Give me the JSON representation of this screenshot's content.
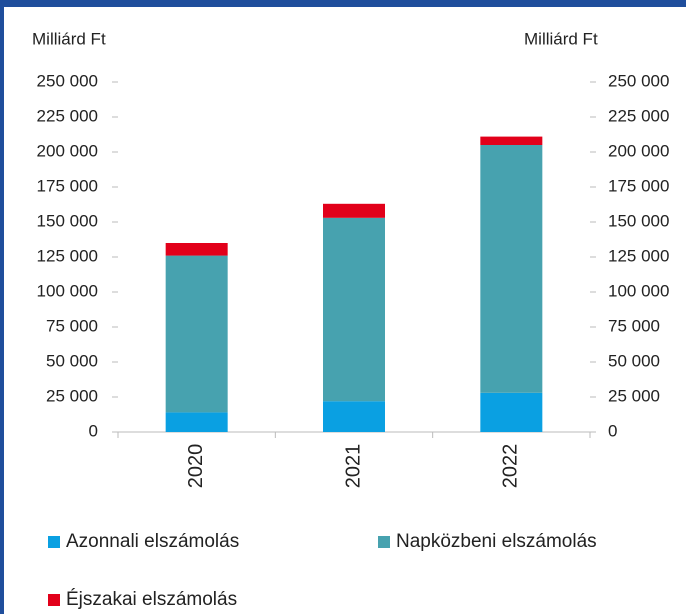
{
  "chart_data": {
    "type": "bar",
    "stacked": true,
    "y_label": "Milliárd Ft",
    "y2_label": "Milliárd Ft",
    "categories": [
      "2020",
      "2021",
      "2022"
    ],
    "series": [
      {
        "name": "Azonnali elszámolás",
        "color": "#0aa0e2",
        "values": [
          14000,
          22000,
          28000
        ]
      },
      {
        "name": "Napközbeni elszámolás",
        "color": "#47a2af",
        "values": [
          112000,
          131000,
          177000
        ]
      },
      {
        "name": "Éjszakai elszámolás",
        "color": "#e2001a",
        "values": [
          9000,
          10000,
          6000
        ]
      }
    ],
    "ylim": [
      0,
      250000
    ],
    "yticks": [
      0,
      {
        "value": 25000,
        "label": "25 000"
      },
      {
        "value": 50000,
        "label": "50 000"
      },
      {
        "value": 75000,
        "label": "75 000"
      },
      {
        "value": 100000,
        "label": "100 000"
      },
      {
        "value": 125000,
        "label": "125 000"
      },
      {
        "value": 150000,
        "label": "150 000"
      },
      {
        "value": 175000,
        "label": "175 000"
      },
      {
        "value": 200000,
        "label": "200 000"
      },
      {
        "value": 225000,
        "label": "225 000"
      },
      {
        "value": 250000,
        "label": "250 000"
      }
    ],
    "y2lim": [
      0,
      250000
    ],
    "y2ticks": [
      0,
      {
        "value": 25000,
        "label": "25 000"
      },
      {
        "value": 50000,
        "label": "50 000"
      },
      {
        "value": 75000,
        "label": "75 000"
      },
      {
        "value": 100000,
        "label": "100 000"
      },
      {
        "value": 125000,
        "label": "125 000"
      },
      {
        "value": 150000,
        "label": "150 000"
      },
      {
        "value": 175000,
        "label": "175 000"
      },
      {
        "value": 200000,
        "label": "200 000"
      },
      {
        "value": 225000,
        "label": "225 000"
      },
      {
        "value": 250000,
        "label": "250 000"
      }
    ]
  }
}
